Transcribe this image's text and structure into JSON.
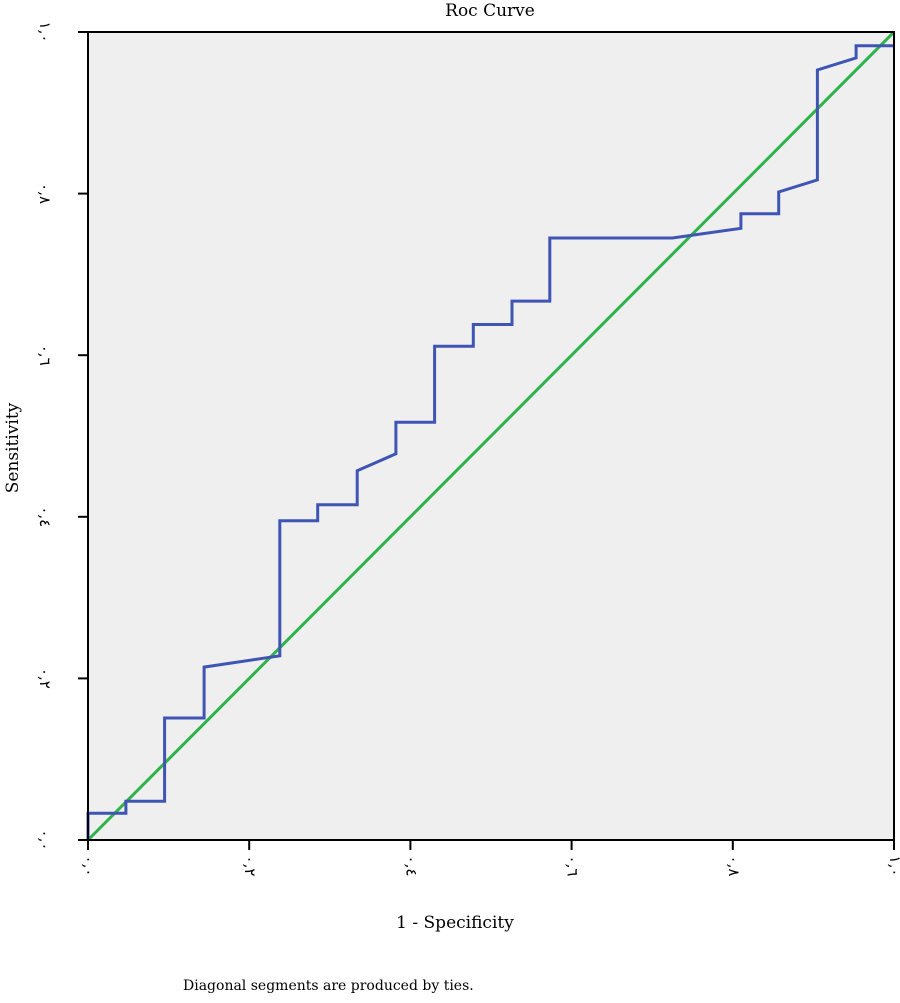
{
  "chart_data": {
    "type": "line",
    "title": "Roc Curve",
    "xlabel": "1 - Specificity",
    "ylabel": "Sensitivity",
    "footnote": "Diagonal segments are produced by ties.",
    "xlim": [
      0,
      1
    ],
    "ylim": [
      0,
      1
    ],
    "grid": false,
    "x_ticks": [
      0,
      0.2,
      0.4,
      0.6,
      0.8,
      1.0
    ],
    "x_tick_labels": [
      "٠,٠",
      "٠,٢",
      "٠,٤",
      "٠,٦",
      "٠,٨",
      "١,٠"
    ],
    "y_ticks": [
      0,
      0.2,
      0.4,
      0.6,
      0.8,
      1.0
    ],
    "y_tick_labels": [
      "٠,٠",
      "٠,٢",
      "٠,٤",
      "٠,٦",
      "٠,٨",
      "١,٠"
    ],
    "series": [
      {
        "color": "#3f55b4",
        "points": [
          [
            0,
            0
          ],
          [
            0,
            0.033
          ],
          [
            0.047,
            0.033
          ],
          [
            0.047,
            0.048
          ],
          [
            0.095,
            0.048
          ],
          [
            0.095,
            0.151
          ],
          [
            0.144,
            0.151
          ],
          [
            0.144,
            0.214
          ],
          [
            0.238,
            0.228
          ],
          [
            0.238,
            0.395
          ],
          [
            0.285,
            0.395
          ],
          [
            0.285,
            0.415
          ],
          [
            0.334,
            0.415
          ],
          [
            0.334,
            0.457
          ],
          [
            0.382,
            0.478
          ],
          [
            0.382,
            0.517
          ],
          [
            0.43,
            0.517
          ],
          [
            0.43,
            0.611
          ],
          [
            0.478,
            0.611
          ],
          [
            0.478,
            0.638
          ],
          [
            0.526,
            0.638
          ],
          [
            0.526,
            0.667
          ],
          [
            0.573,
            0.667
          ],
          [
            0.573,
            0.745
          ],
          [
            0.725,
            0.745
          ],
          [
            0.81,
            0.757
          ],
          [
            0.81,
            0.775
          ],
          [
            0.857,
            0.775
          ],
          [
            0.857,
            0.802
          ],
          [
            0.905,
            0.817
          ],
          [
            0.905,
            0.953
          ],
          [
            0.953,
            0.968
          ],
          [
            0.953,
            0.983
          ],
          [
            1.0,
            0.983
          ]
        ]
      },
      {
        "color": "#2db34a",
        "points": [
          [
            0,
            0
          ],
          [
            1,
            1
          ]
        ]
      }
    ]
  }
}
